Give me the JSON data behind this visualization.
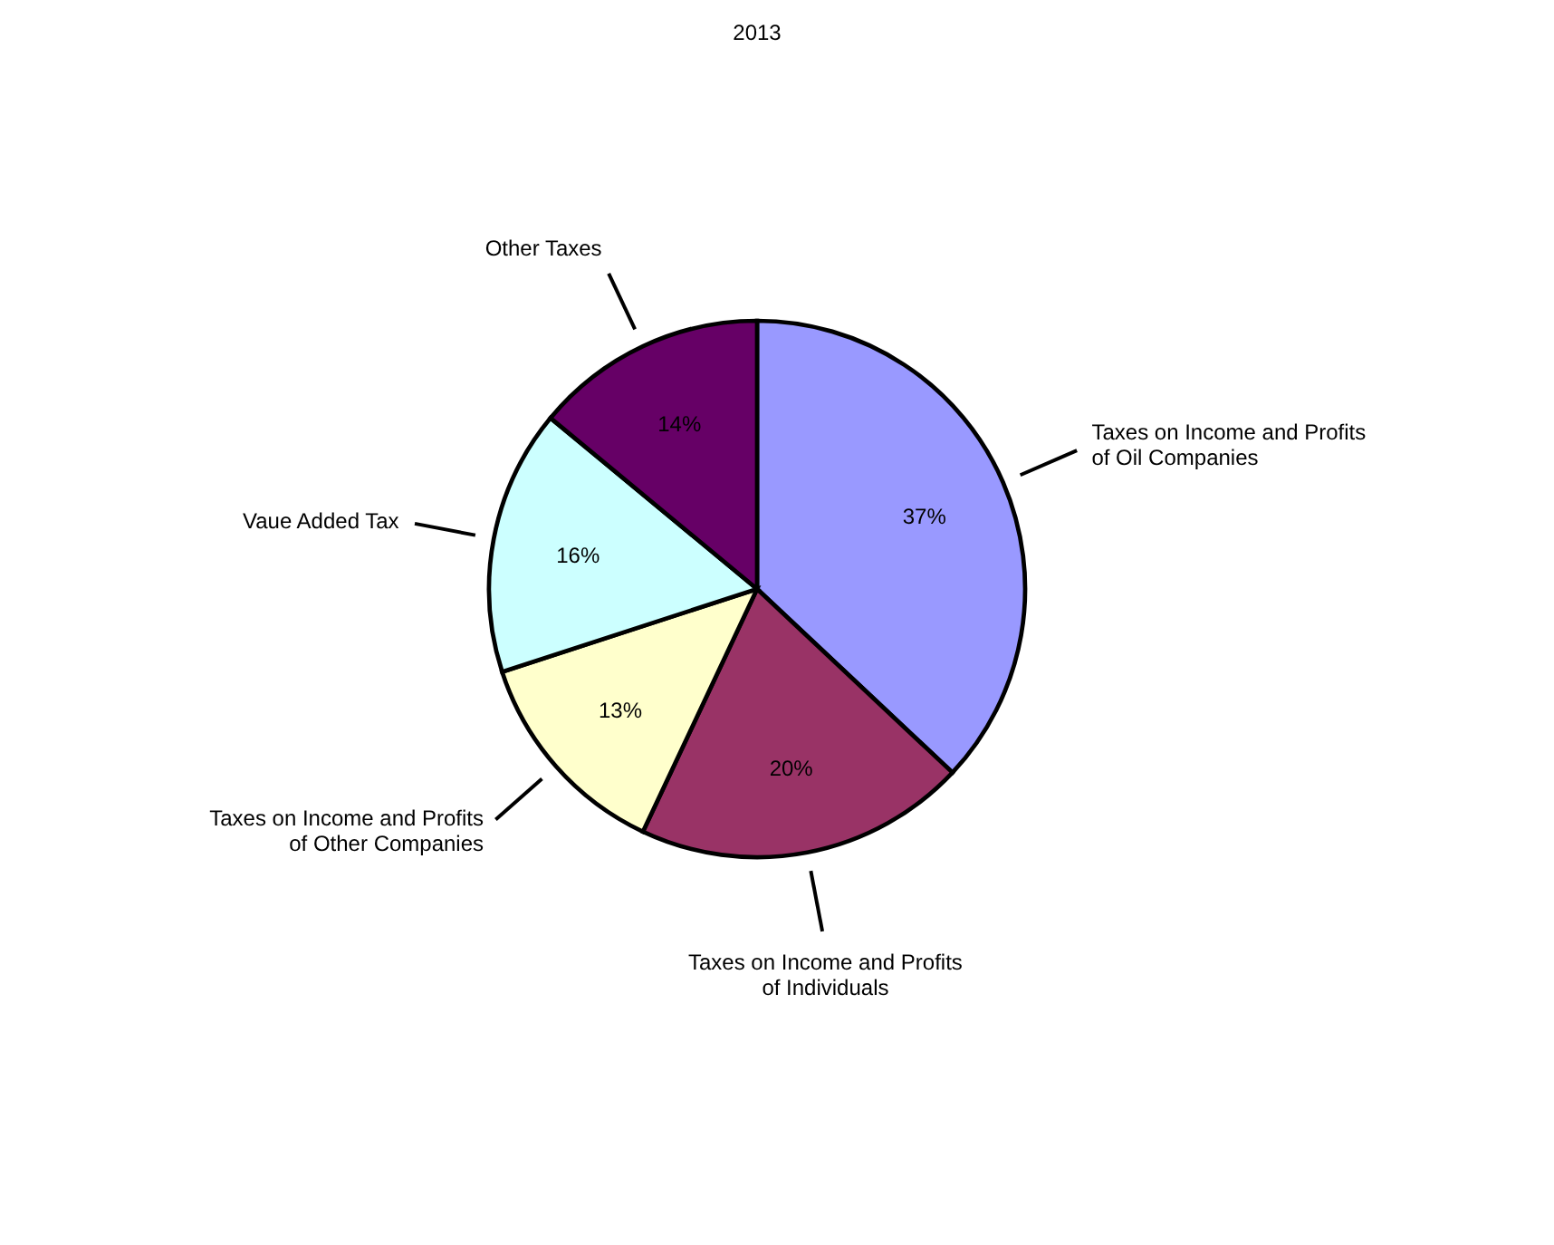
{
  "chart_data": {
    "type": "pie",
    "title": "2013",
    "categories": [
      "Taxes on Income and Profits of Oil Companies",
      "Taxes on Income and Profits of Individuals",
      "Taxes on Income and Profits of Other Companies",
      "Vaue Added  Tax",
      "Other Taxes"
    ],
    "values": [
      37,
      20,
      13,
      16,
      14
    ],
    "colors": [
      "#9999ff",
      "#993366",
      "#ffffcc",
      "#ccffff",
      "#660066"
    ],
    "value_labels": [
      "37%",
      "20%",
      "13%",
      "16%",
      "14%"
    ]
  }
}
